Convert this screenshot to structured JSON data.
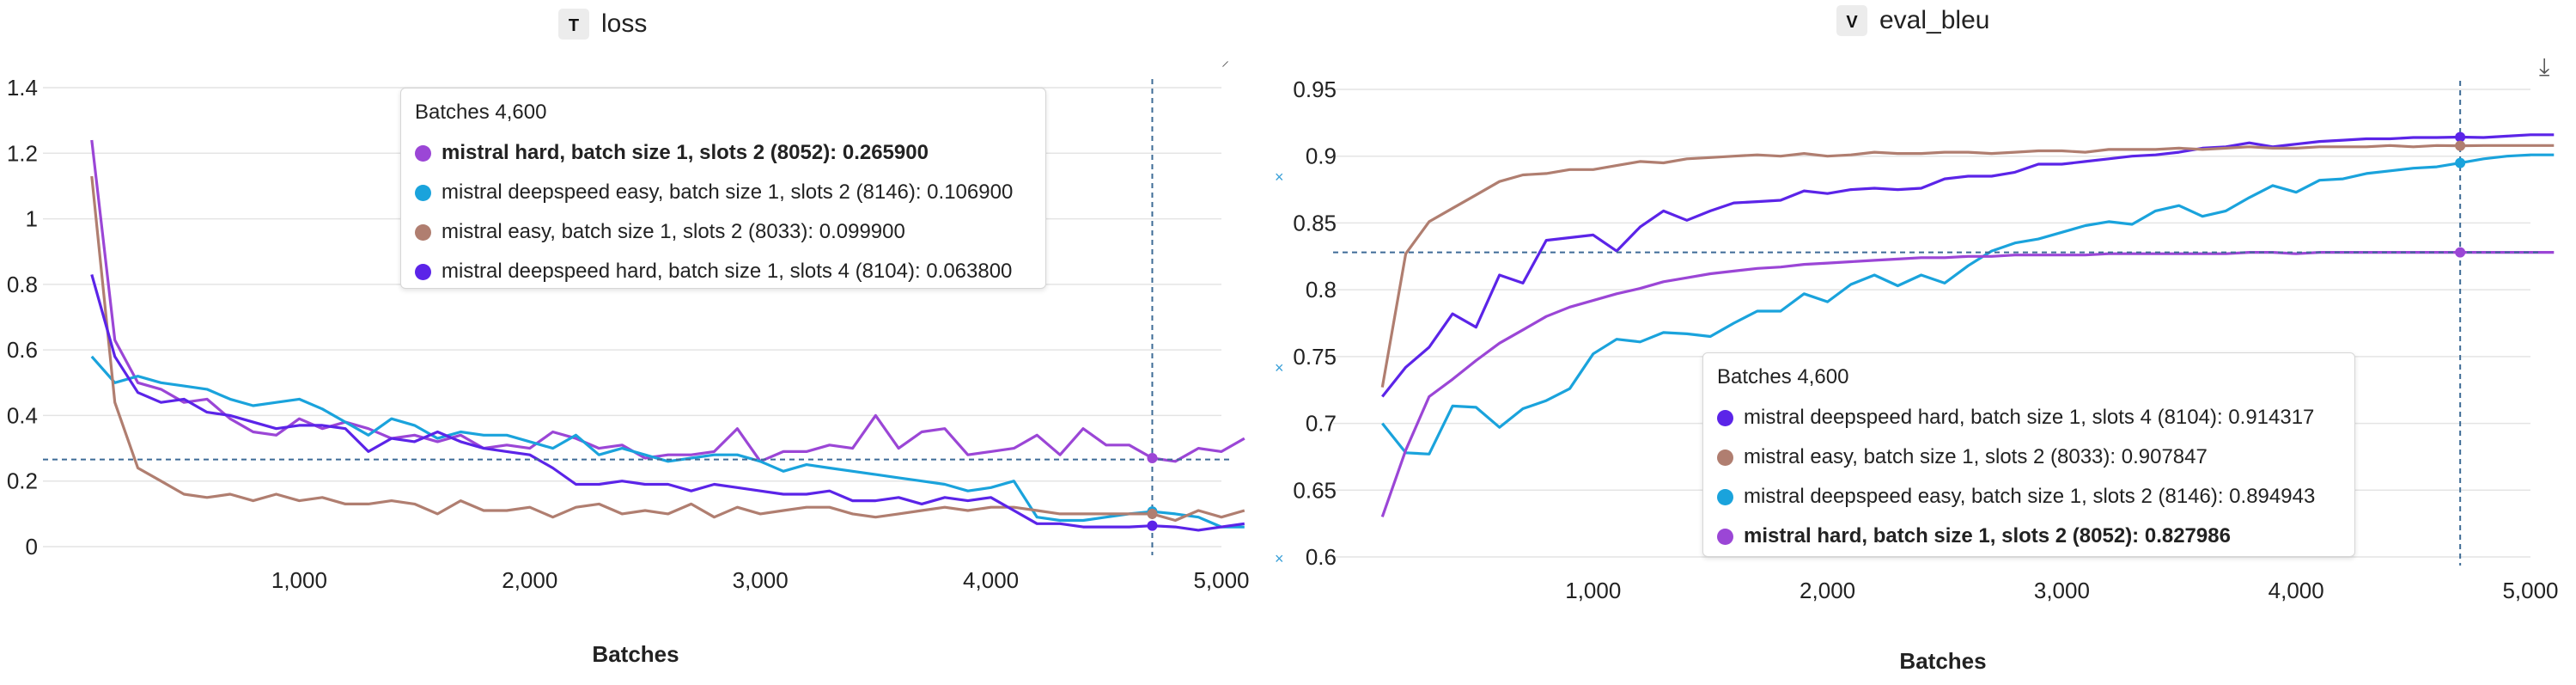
{
  "colors": {
    "purple": "#9b46d6",
    "cyan": "#1aa3dc",
    "brown": "#b07e70",
    "indigo": "#5b24e8",
    "crosshair": "#3d6b96",
    "grid": "#e4e4e4"
  },
  "icons": {
    "download": "download-icon",
    "expand": "expand-icon"
  },
  "chart_data": [
    {
      "type": "line",
      "badge": "T",
      "title": "loss",
      "xlabel": "Batches",
      "ylabel": "",
      "xlim": [
        0,
        5000
      ],
      "ylim": [
        0,
        1.4
      ],
      "x_ticks": [
        1000,
        2000,
        3000,
        4000,
        5000
      ],
      "x_tick_labels": [
        "1,000",
        "2,000",
        "3,000",
        "4,000",
        "5,000"
      ],
      "y_ticks": [
        0,
        0.2,
        0.4,
        0.6,
        0.8,
        1,
        1.2,
        1.4
      ],
      "y_tick_labels": [
        "0",
        "0.2",
        "0.4",
        "0.6",
        "0.8",
        "1",
        "1.2",
        "1.4"
      ],
      "grid": true,
      "hover": {
        "x": 4600,
        "y": 0.2659
      },
      "tooltip": {
        "header": "Batches 4,600",
        "rows": [
          {
            "text": "mistral hard, batch size 1, slots 2 (8052): 0.265900",
            "color": "#9b46d6",
            "bold": true
          },
          {
            "text": "mistral deepspeed easy, batch size 1, slots 2 (8146): 0.106900",
            "color": "#1aa3dc",
            "bold": false
          },
          {
            "text": "mistral easy, batch size 1, slots 2 (8033): 0.099900",
            "color": "#b07e70",
            "bold": false
          },
          {
            "text": "mistral deepspeed hard, batch size 1, slots 4 (8104): 0.063800",
            "color": "#5b24e8",
            "bold": false
          }
        ]
      },
      "series": [
        {
          "name": "mistral hard, batch size 1, slots 2 (8052)",
          "color": "#9b46d6",
          "x": [
            0,
            100,
            200,
            300,
            400,
            500,
            600,
            700,
            800,
            900,
            1000,
            1100,
            1200,
            1300,
            1400,
            1500,
            1600,
            1700,
            1800,
            1900,
            2000,
            2100,
            2200,
            2300,
            2400,
            2500,
            2600,
            2700,
            2800,
            2900,
            3000,
            3100,
            3200,
            3300,
            3400,
            3500,
            3600,
            3700,
            3800,
            3900,
            4000,
            4100,
            4200,
            4300,
            4400,
            4500,
            4600,
            4700,
            4800,
            4900,
            5000
          ],
          "y": [
            1.24,
            0.63,
            0.5,
            0.48,
            0.44,
            0.45,
            0.39,
            0.35,
            0.34,
            0.39,
            0.36,
            0.38,
            0.36,
            0.33,
            0.34,
            0.32,
            0.34,
            0.3,
            0.31,
            0.3,
            0.35,
            0.33,
            0.3,
            0.31,
            0.27,
            0.28,
            0.28,
            0.29,
            0.36,
            0.26,
            0.29,
            0.29,
            0.31,
            0.3,
            0.4,
            0.3,
            0.35,
            0.36,
            0.28,
            0.29,
            0.3,
            0.34,
            0.28,
            0.36,
            0.31,
            0.31,
            0.27,
            0.26,
            0.3,
            0.29,
            0.33
          ]
        },
        {
          "name": "mistral deepspeed easy, batch size 1, slots 2 (8146)",
          "color": "#1aa3dc",
          "x": [
            0,
            100,
            200,
            300,
            400,
            500,
            600,
            700,
            800,
            900,
            1000,
            1100,
            1200,
            1300,
            1400,
            1500,
            1600,
            1700,
            1800,
            1900,
            2000,
            2100,
            2200,
            2300,
            2400,
            2500,
            2600,
            2700,
            2800,
            2900,
            3000,
            3100,
            3200,
            3300,
            3400,
            3500,
            3600,
            3700,
            3800,
            3900,
            4000,
            4100,
            4200,
            4300,
            4400,
            4500,
            4600,
            4700,
            4800,
            4900,
            5000
          ],
          "y": [
            0.58,
            0.5,
            0.52,
            0.5,
            0.49,
            0.48,
            0.45,
            0.43,
            0.44,
            0.45,
            0.42,
            0.38,
            0.34,
            0.39,
            0.37,
            0.33,
            0.35,
            0.34,
            0.34,
            0.32,
            0.3,
            0.34,
            0.28,
            0.3,
            0.28,
            0.26,
            0.27,
            0.28,
            0.28,
            0.26,
            0.23,
            0.25,
            0.24,
            0.23,
            0.22,
            0.21,
            0.2,
            0.19,
            0.17,
            0.18,
            0.2,
            0.09,
            0.08,
            0.08,
            0.09,
            0.1,
            0.107,
            0.1,
            0.09,
            0.06,
            0.06
          ]
        },
        {
          "name": "mistral easy, batch size 1, slots 2 (8033)",
          "color": "#b07e70",
          "x": [
            0,
            100,
            200,
            300,
            400,
            500,
            600,
            700,
            800,
            900,
            1000,
            1100,
            1200,
            1300,
            1400,
            1500,
            1600,
            1700,
            1800,
            1900,
            2000,
            2100,
            2200,
            2300,
            2400,
            2500,
            2600,
            2700,
            2800,
            2900,
            3000,
            3100,
            3200,
            3300,
            3400,
            3500,
            3600,
            3700,
            3800,
            3900,
            4000,
            4100,
            4200,
            4300,
            4400,
            4500,
            4600,
            4700,
            4800,
            4900,
            5000
          ],
          "y": [
            1.13,
            0.44,
            0.24,
            0.2,
            0.16,
            0.15,
            0.16,
            0.14,
            0.16,
            0.14,
            0.15,
            0.13,
            0.13,
            0.14,
            0.13,
            0.1,
            0.14,
            0.11,
            0.11,
            0.12,
            0.09,
            0.12,
            0.13,
            0.1,
            0.11,
            0.1,
            0.13,
            0.09,
            0.12,
            0.1,
            0.11,
            0.12,
            0.12,
            0.1,
            0.09,
            0.1,
            0.11,
            0.12,
            0.11,
            0.12,
            0.12,
            0.11,
            0.1,
            0.1,
            0.1,
            0.1,
            0.0999,
            0.08,
            0.11,
            0.09,
            0.11
          ]
        },
        {
          "name": "mistral deepspeed hard, batch size 1, slots 4 (8104)",
          "color": "#5b24e8",
          "x": [
            0,
            100,
            200,
            300,
            400,
            500,
            600,
            700,
            800,
            900,
            1000,
            1100,
            1200,
            1300,
            1400,
            1500,
            1600,
            1700,
            1800,
            1900,
            2000,
            2100,
            2200,
            2300,
            2400,
            2500,
            2600,
            2700,
            2800,
            2900,
            3000,
            3100,
            3200,
            3300,
            3400,
            3500,
            3600,
            3700,
            3800,
            3900,
            4000,
            4100,
            4200,
            4300,
            4400,
            4500,
            4600,
            4700,
            4800,
            4900,
            5000
          ],
          "y": [
            0.83,
            0.58,
            0.47,
            0.44,
            0.45,
            0.41,
            0.4,
            0.38,
            0.36,
            0.37,
            0.37,
            0.36,
            0.29,
            0.33,
            0.32,
            0.35,
            0.32,
            0.3,
            0.29,
            0.28,
            0.24,
            0.19,
            0.19,
            0.2,
            0.19,
            0.19,
            0.17,
            0.19,
            0.18,
            0.17,
            0.16,
            0.16,
            0.17,
            0.14,
            0.14,
            0.15,
            0.13,
            0.15,
            0.14,
            0.15,
            0.11,
            0.07,
            0.07,
            0.06,
            0.06,
            0.06,
            0.0638,
            0.06,
            0.05,
            0.06,
            0.07
          ]
        }
      ]
    },
    {
      "type": "line",
      "badge": "V",
      "title": "eval_bleu",
      "xlabel": "Batches",
      "ylabel": "",
      "xlim": [
        0,
        5000
      ],
      "ylim": [
        0.6,
        0.95
      ],
      "x_ticks": [
        1000,
        2000,
        3000,
        4000,
        5000
      ],
      "x_tick_labels": [
        "1,000",
        "2,000",
        "3,000",
        "4,000",
        "5,000"
      ],
      "y_ticks": [
        0.6,
        0.65,
        0.7,
        0.75,
        0.8,
        0.85,
        0.9,
        0.95
      ],
      "y_tick_labels": [
        "0.6",
        "0.65",
        "0.7",
        "0.75",
        "0.8",
        "0.85",
        "0.9",
        "0.95"
      ],
      "grid": true,
      "hover": {
        "x": 4600,
        "y": 0.827986
      },
      "tooltip": {
        "header": "Batches 4,600",
        "rows": [
          {
            "text": "mistral deepspeed hard, batch size 1, slots 4 (8104): 0.914317",
            "color": "#5b24e8",
            "bold": false
          },
          {
            "text": "mistral easy, batch size 1, slots 2 (8033): 0.907847",
            "color": "#b07e70",
            "bold": false
          },
          {
            "text": "mistral deepspeed easy, batch size 1, slots 2 (8146): 0.894943",
            "color": "#1aa3dc",
            "bold": false
          },
          {
            "text": "mistral hard, batch size 1, slots 2 (8052): 0.827986",
            "color": "#9b46d6",
            "bold": true
          }
        ]
      },
      "series": [
        {
          "name": "mistral deepspeed hard, batch size 1, slots 4 (8104)",
          "color": "#5b24e8",
          "x": [
            0,
            100,
            200,
            300,
            400,
            500,
            600,
            700,
            800,
            900,
            1000,
            1100,
            1200,
            1300,
            1400,
            1500,
            1600,
            1700,
            1800,
            1900,
            2000,
            2100,
            2200,
            2300,
            2400,
            2500,
            2600,
            2700,
            2800,
            2900,
            3000,
            3100,
            3200,
            3300,
            3400,
            3500,
            3600,
            3700,
            3800,
            3900,
            4000,
            4100,
            4200,
            4300,
            4400,
            4500,
            4600,
            4700,
            4800,
            4900,
            5000
          ],
          "y": [
            0.72,
            0.742,
            0.757,
            0.782,
            0.772,
            0.811,
            0.805,
            0.837,
            0.839,
            0.841,
            0.829,
            0.847,
            0.859,
            0.852,
            0.859,
            0.865,
            0.866,
            0.867,
            0.874,
            0.872,
            0.875,
            0.876,
            0.875,
            0.876,
            0.883,
            0.885,
            0.885,
            0.888,
            0.894,
            0.894,
            0.896,
            0.898,
            0.9,
            0.901,
            0.903,
            0.906,
            0.907,
            0.91,
            0.907,
            0.909,
            0.911,
            0.912,
            0.913,
            0.913,
            0.914,
            0.914,
            0.9143,
            0.914,
            0.915,
            0.916,
            0.916
          ]
        },
        {
          "name": "mistral easy, batch size 1, slots 2 (8033)",
          "color": "#b07e70",
          "x": [
            0,
            100,
            200,
            300,
            400,
            500,
            600,
            700,
            800,
            900,
            1000,
            1100,
            1200,
            1300,
            1400,
            1500,
            1600,
            1700,
            1800,
            1900,
            2000,
            2100,
            2200,
            2300,
            2400,
            2500,
            2600,
            2700,
            2800,
            2900,
            3000,
            3100,
            3200,
            3300,
            3400,
            3500,
            3600,
            3700,
            3800,
            3900,
            4000,
            4100,
            4200,
            4300,
            4400,
            4500,
            4600,
            4700,
            4800,
            4900,
            5000
          ],
          "y": [
            0.727,
            0.827,
            0.851,
            0.861,
            0.871,
            0.881,
            0.886,
            0.887,
            0.89,
            0.89,
            0.893,
            0.896,
            0.895,
            0.898,
            0.899,
            0.9,
            0.901,
            0.9,
            0.902,
            0.9,
            0.901,
            0.903,
            0.902,
            0.902,
            0.903,
            0.903,
            0.902,
            0.903,
            0.904,
            0.904,
            0.903,
            0.905,
            0.905,
            0.905,
            0.906,
            0.905,
            0.906,
            0.907,
            0.906,
            0.906,
            0.907,
            0.907,
            0.907,
            0.908,
            0.907,
            0.908,
            0.9078,
            0.908,
            0.908,
            0.908,
            0.908
          ]
        },
        {
          "name": "mistral deepspeed easy, batch size 1, slots 2 (8146)",
          "color": "#1aa3dc",
          "x": [
            0,
            100,
            200,
            300,
            400,
            500,
            600,
            700,
            800,
            900,
            1000,
            1100,
            1200,
            1300,
            1400,
            1500,
            1600,
            1700,
            1800,
            1900,
            2000,
            2100,
            2200,
            2300,
            2400,
            2500,
            2600,
            2700,
            2800,
            2900,
            3000,
            3100,
            3200,
            3300,
            3400,
            3500,
            3600,
            3700,
            3800,
            3900,
            4000,
            4100,
            4200,
            4300,
            4400,
            4500,
            4600,
            4700,
            4800,
            4900,
            5000
          ],
          "y": [
            0.7,
            0.678,
            0.677,
            0.713,
            0.712,
            0.697,
            0.711,
            0.717,
            0.726,
            0.752,
            0.763,
            0.761,
            0.768,
            0.767,
            0.765,
            0.775,
            0.784,
            0.784,
            0.797,
            0.791,
            0.804,
            0.811,
            0.803,
            0.811,
            0.805,
            0.818,
            0.829,
            0.835,
            0.838,
            0.843,
            0.848,
            0.851,
            0.849,
            0.859,
            0.863,
            0.855,
            0.859,
            0.869,
            0.878,
            0.873,
            0.882,
            0.883,
            0.887,
            0.889,
            0.891,
            0.892,
            0.8949,
            0.898,
            0.9,
            0.901,
            0.901
          ]
        },
        {
          "name": "mistral hard, batch size 1, slots 2 (8052)",
          "color": "#9b46d6",
          "x": [
            0,
            100,
            200,
            300,
            400,
            500,
            600,
            700,
            800,
            900,
            1000,
            1100,
            1200,
            1300,
            1400,
            1500,
            1600,
            1700,
            1800,
            1900,
            2000,
            2100,
            2200,
            2300,
            2400,
            2500,
            2600,
            2700,
            2800,
            2900,
            3000,
            3100,
            3200,
            3300,
            3400,
            3500,
            3600,
            3700,
            3800,
            3900,
            4000,
            4100,
            4200,
            4300,
            4400,
            4500,
            4600,
            4700,
            4800,
            4900,
            5000
          ],
          "y": [
            0.63,
            0.68,
            0.72,
            0.733,
            0.747,
            0.76,
            0.77,
            0.78,
            0.787,
            0.792,
            0.797,
            0.801,
            0.806,
            0.809,
            0.812,
            0.814,
            0.816,
            0.817,
            0.819,
            0.82,
            0.821,
            0.822,
            0.823,
            0.824,
            0.824,
            0.825,
            0.825,
            0.826,
            0.826,
            0.826,
            0.826,
            0.827,
            0.827,
            0.827,
            0.827,
            0.827,
            0.827,
            0.828,
            0.828,
            0.827,
            0.828,
            0.828,
            0.828,
            0.828,
            0.828,
            0.828,
            0.828,
            0.828,
            0.828,
            0.828,
            0.828
          ]
        }
      ]
    }
  ]
}
